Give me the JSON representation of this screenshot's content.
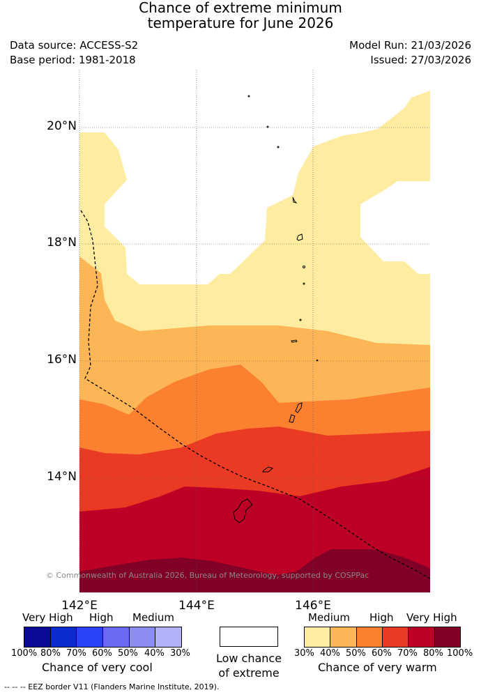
{
  "title_line1": "Chance of extreme minimum",
  "title_line2": "temperature for June 2026",
  "meta": {
    "data_source": "Data source: ACCESS-S2",
    "base_period": "Base period: 1981-2018",
    "model_run": "Model Run: 21/03/2026",
    "issued": "Issued: 27/03/2026"
  },
  "map": {
    "lat_labels": [
      "20°N",
      "18°N",
      "16°N",
      "14°N"
    ],
    "lon_labels": [
      "142°E",
      "144°E",
      "146°E"
    ],
    "copyright": "© Commonwealth of Australia 2026, Bureau of Meteorology, supported by COSPPac",
    "colors": {
      "warm_30": "#feeca0",
      "warm_40": "#fcb656",
      "warm_50": "#fb8030",
      "warm_60": "#ea3a24",
      "warm_70": "#bd0026",
      "warm_80": "#800026"
    }
  },
  "legend": {
    "cool": {
      "headers": [
        "Very High",
        "High",
        "Medium"
      ],
      "ticks": [
        "100%",
        "80%",
        "70%",
        "60%",
        "50%",
        "40%",
        "30%"
      ],
      "colors": [
        "#0a0a96",
        "#0a2bd0",
        "#2a44f5",
        "#6a6af5",
        "#8c8cf5",
        "#b2b2fb"
      ],
      "caption": "Chance of very cool"
    },
    "neutral": {
      "line1": "Low chance",
      "line2": "of extreme"
    },
    "warm": {
      "headers": [
        "Medium",
        "High",
        "Very High"
      ],
      "ticks": [
        "30%",
        "40%",
        "50%",
        "60%",
        "70%",
        "80%",
        "100%"
      ],
      "colors": [
        "#feeca0",
        "#fcb656",
        "#fb8030",
        "#ea3a24",
        "#bd0026",
        "#800026"
      ],
      "caption": "Chance of very warm"
    }
  },
  "footer": {
    "eez_note": "-- -- -- EEZ border V11 (Flanders Marine Institute, 2019)."
  }
}
